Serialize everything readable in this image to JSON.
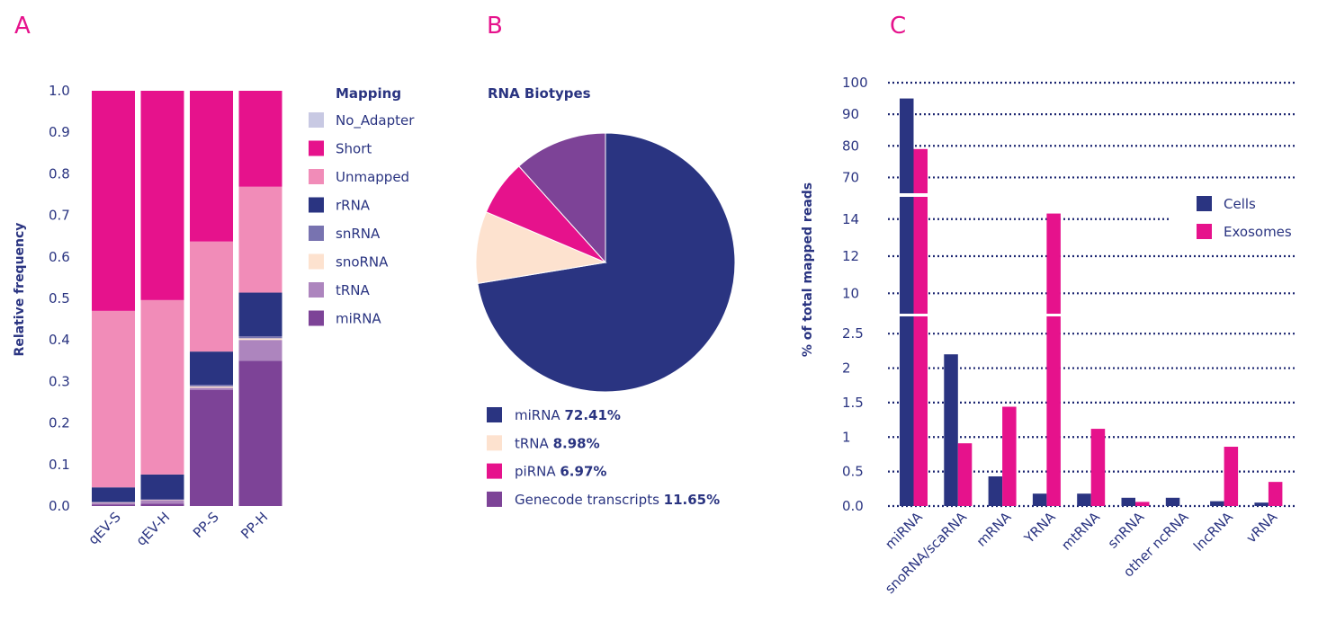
{
  "panels": {
    "a": "A",
    "b": "B",
    "c": "C"
  },
  "colors": {
    "navy": "#2a3481",
    "magenta": "#e6128c",
    "pink": "#f18cb8",
    "lavender": "#c8c9e3",
    "slate": "#7873b0",
    "peach": "#fde2cf",
    "lilac": "#ad85be",
    "purple": "#7d4397",
    "grid": "#1b2570"
  },
  "chart_data": [
    {
      "type": "bar",
      "stacked": true,
      "panel": "A",
      "ylabel": "Relative frequency",
      "ylim": [
        0,
        1.0
      ],
      "yticks": [
        "0.0",
        "0.1",
        "0.2",
        "0.3",
        "0.4",
        "0.5",
        "0.6",
        "0.7",
        "0.8",
        "0.9",
        "1.0"
      ],
      "categories": [
        "qEV-S",
        "qEV-H",
        "PP-S",
        "PP-H"
      ],
      "legend_title": "Mapping",
      "legend_position": "right",
      "series": [
        {
          "name": "miRNA",
          "color": "#7d4397",
          "values": [
            0.004,
            0.006,
            0.28,
            0.35
          ]
        },
        {
          "name": "tRNA",
          "color": "#ad85be",
          "values": [
            0.004,
            0.008,
            0.005,
            0.05
          ]
        },
        {
          "name": "snoRNA",
          "color": "#fde2cf",
          "values": [
            0.001,
            0.001,
            0.003,
            0.004
          ]
        },
        {
          "name": "snRNA",
          "color": "#7873b0",
          "values": [
            0.001,
            0.001,
            0.004,
            0.005
          ]
        },
        {
          "name": "rRNA",
          "color": "#2a3481",
          "values": [
            0.035,
            0.06,
            0.08,
            0.105
          ]
        },
        {
          "name": "Unmapped",
          "color": "#f18cb8",
          "values": [
            0.425,
            0.42,
            0.265,
            0.255
          ]
        },
        {
          "name": "Short",
          "color": "#e6128c",
          "values": [
            0.53,
            0.504,
            0.363,
            0.231
          ]
        },
        {
          "name": "No_Adapter",
          "color": "#c8c9e3",
          "values": [
            0,
            0,
            0,
            0
          ]
        }
      ],
      "legend_order": [
        "No_Adapter",
        "Short",
        "Unmapped",
        "rRNA",
        "snRNA",
        "snoRNA",
        "tRNA",
        "miRNA"
      ]
    },
    {
      "type": "pie",
      "panel": "B",
      "title": "RNA Biotypes",
      "legend_position": "bottom",
      "slices": [
        {
          "label": "miRNA",
          "pct": "72.41%",
          "value": 72.41,
          "color": "#2a3481"
        },
        {
          "label": "tRNA",
          "pct": "8.98%",
          "value": 8.98,
          "color": "#fde2cf"
        },
        {
          "label": "piRNA",
          "pct": "6.97%",
          "value": 6.97,
          "color": "#e6128c"
        },
        {
          "label": "Genecode transcripts",
          "pct": "11.65%",
          "value": 11.65,
          "color": "#7d4397"
        }
      ]
    },
    {
      "type": "bar",
      "panel": "C",
      "axis_break": true,
      "ylabel": "% of total mapped reads",
      "categories": [
        "miRNA",
        "snoRNA/scaRNA",
        "mRNA",
        "YRNA",
        "mtRNA",
        "snRNA",
        "other ncRNA",
        "lncRNA",
        "vRNA"
      ],
      "segments": [
        {
          "range": [
            0,
            2.75
          ],
          "ticks": [
            0,
            0.5,
            1,
            1.5,
            2,
            2.5
          ],
          "tick_labels": [
            "0.0",
            "0.5",
            "1",
            "1.5",
            "2",
            "2.5"
          ]
        },
        {
          "range": [
            8.9,
            15.2
          ],
          "ticks": [
            10,
            12,
            14
          ],
          "tick_labels": [
            "10",
            "12",
            "14"
          ]
        },
        {
          "range": [
            65,
            100
          ],
          "ticks": [
            70,
            80,
            90,
            100
          ],
          "tick_labels": [
            "70",
            "80",
            "90",
            "100"
          ]
        }
      ],
      "legend_position": "right",
      "series": [
        {
          "name": "Cells",
          "color": "#2a3481",
          "values": [
            95,
            2.2,
            0.43,
            0.18,
            0.18,
            0.12,
            0.12,
            0.07,
            0.05
          ]
        },
        {
          "name": "Exosomes",
          "color": "#e6128c",
          "values": [
            79,
            0.91,
            1.44,
            14.3,
            1.12,
            0.06,
            0,
            0.86,
            0.35
          ]
        }
      ]
    }
  ]
}
